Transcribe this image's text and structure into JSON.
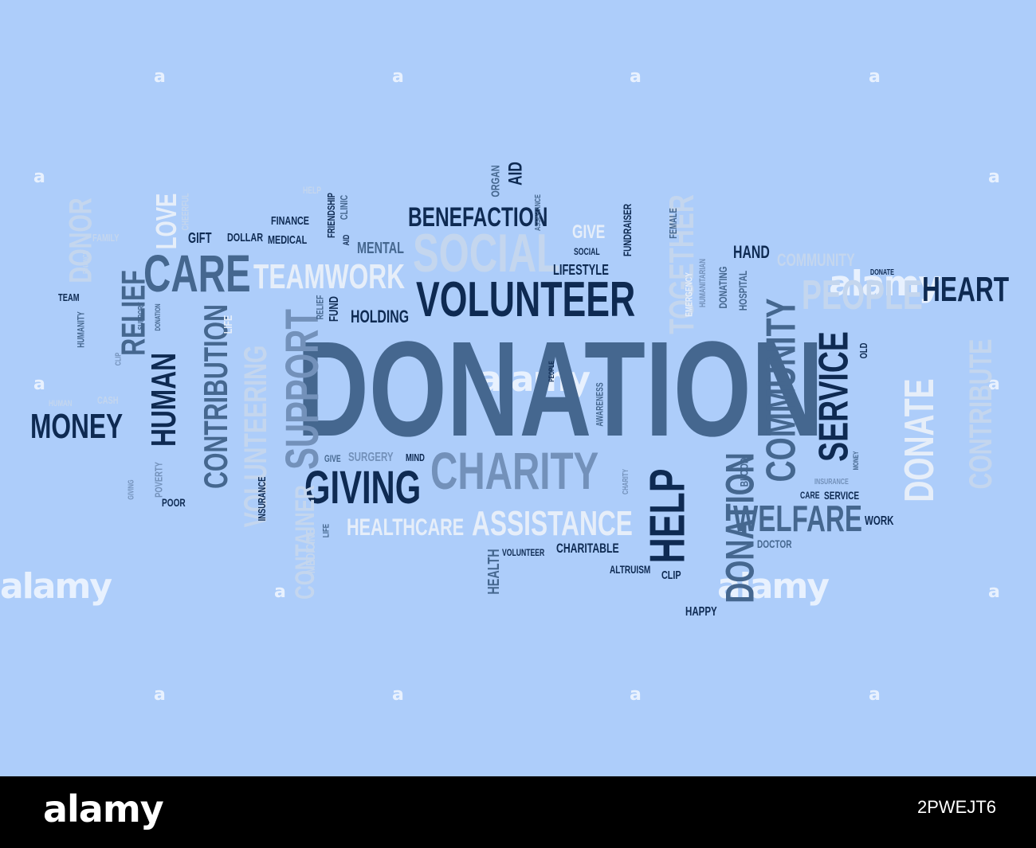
{
  "words": [
    "DONATION",
    "VOLUNTEER",
    "CHARITY",
    "GIVING",
    "SERVICE",
    "COMMUNITY",
    "HELP",
    "DONATION",
    "SUPPORT",
    "CONTRIBUTION",
    "HUMAN",
    "CARE",
    "RELIEF",
    "MONEY",
    "HEART",
    "BENEFACTION",
    "SOCIAL",
    "TEAMWORK",
    "TOGETHER",
    "PEOPLE",
    "DONATE",
    "CONTRIBUTE",
    "WELFARE",
    "ASSISTANCE",
    "HEALTHCARE",
    "VOLUNTEERING",
    "CONTAINER",
    "LOVE",
    "DONOR",
    "COMMUNITY",
    "HAND",
    "GIFT",
    "DOLLAR",
    "FINANCE",
    "MEDICAL",
    "FRIENDSHIP",
    "CLINIC",
    "AID",
    "MENTAL",
    "ORGAN",
    "AID",
    "GIVE",
    "LIFESTYLE",
    "SOCIAL",
    "FUNDRAISER",
    "FEMALE",
    "HOLDING",
    "FUND",
    "RELIEF",
    "LIFE",
    "POOR",
    "INSURANCE",
    "MEDICINE",
    "LIFE",
    "GIVE",
    "SURGERY",
    "MIND",
    "HEALTH",
    "VOLUNTEER",
    "CHARITABLE",
    "ALTRUISM",
    "CLIP",
    "HAPPY",
    "DOCTOR",
    "WORK",
    "CARE",
    "SERVICE",
    "INSURANCE",
    "MONEY",
    "BLOOD",
    "DONATING",
    "HOSPITAL",
    "HUMANITARIAN",
    "EMERGENCY",
    "OLD",
    "DONATE",
    "AWARENESS",
    "PEOPLE",
    "CHARITY",
    "TEAM",
    "FAMILY",
    "FINANCE",
    "CHEERFUL",
    "HELP",
    "HUMANITY",
    "SUPPORT",
    "DONATION",
    "CLIP",
    "POVERTY",
    "GIVING",
    "CASH",
    "HUMAN",
    "ASSISTANCE"
  ],
  "colors": {
    "background": "#adcdfa",
    "dark": "#0e2a52",
    "mid": "#45678f",
    "soft": "#7391ba",
    "light": "#c4d6ee",
    "white": "#e6eef9"
  },
  "watermark": {
    "text": "alamy",
    "mark": "a"
  },
  "footer": {
    "brand": "alamy",
    "image_id": "2PWEJT6"
  }
}
